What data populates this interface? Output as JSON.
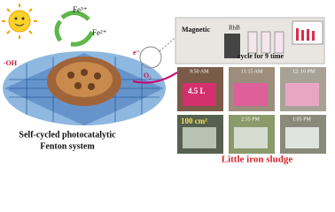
{
  "left": {
    "fe3": "Fe³⁺",
    "fe2": "Fe²⁺",
    "oh": "·OH",
    "electron": "e⁻",
    "o2": "O₂",
    "caption": [
      "Self-cycled photocatalytic",
      "Fenton system"
    ]
  },
  "right": {
    "magnetic": "Magnetic",
    "rhb": "RhB",
    "cycles": "cycle for 9 time",
    "photos": [
      {
        "time": "9:50 AM",
        "note": "4.5 L"
      },
      {
        "time": "11:15 AM"
      },
      {
        "time": "12: 10 PM"
      },
      {
        "time": "",
        "note": "100 cm²"
      },
      {
        "time": "2:35 PM"
      },
      {
        "time": "1:05 PM"
      }
    ],
    "caption": "Little iron sludge"
  }
}
